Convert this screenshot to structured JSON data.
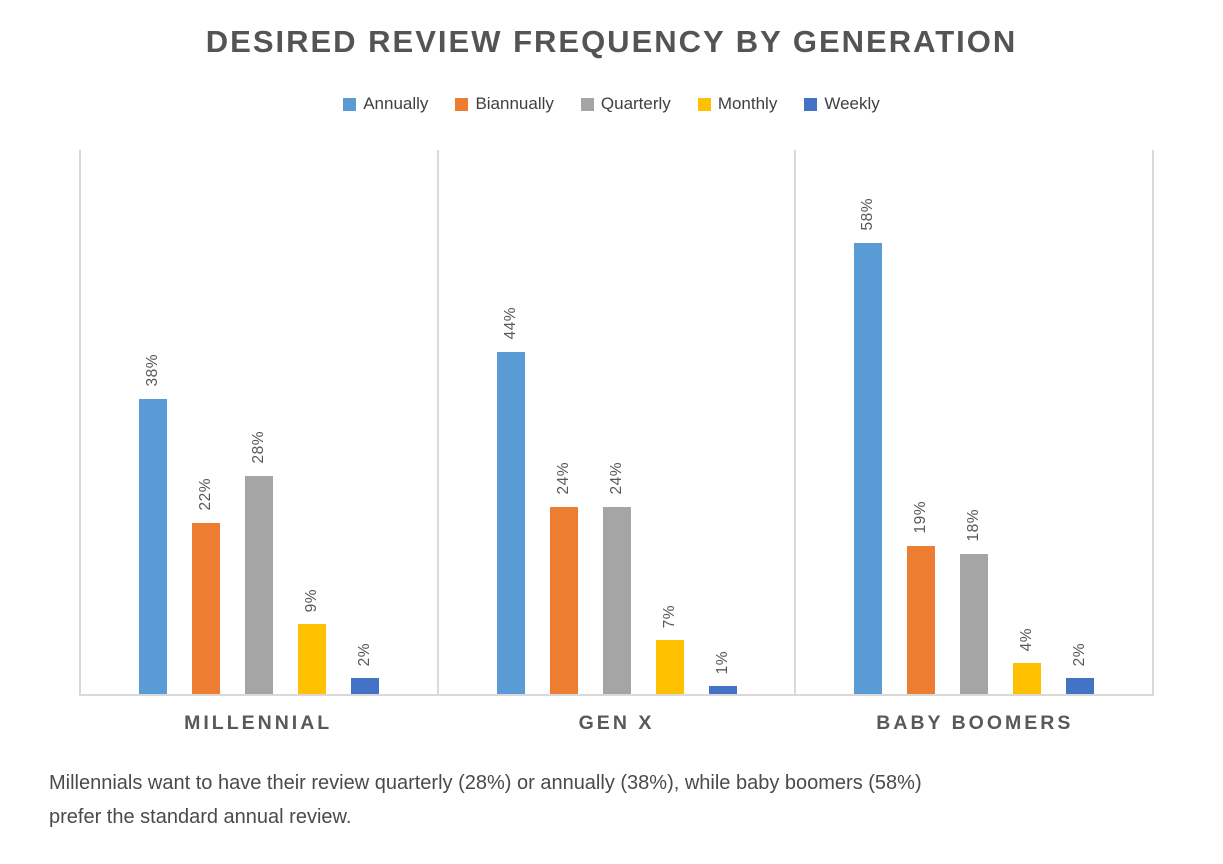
{
  "chart_data": {
    "type": "bar",
    "title": "DESIRED REVIEW FREQUENCY BY GENERATION",
    "categories": [
      "MILLENNIAL",
      "GEN X",
      "BABY BOOMERS"
    ],
    "series": [
      {
        "name": "Annually",
        "color": "#5B9BD5",
        "values": [
          38,
          44,
          58
        ]
      },
      {
        "name": "Biannually",
        "color": "#ED7D31",
        "values": [
          22,
          24,
          19
        ]
      },
      {
        "name": "Quarterly",
        "color": "#A5A5A5",
        "values": [
          28,
          24,
          18
        ]
      },
      {
        "name": "Monthly",
        "color": "#FFC000",
        "values": [
          9,
          7,
          4
        ]
      },
      {
        "name": "Weekly",
        "color": "#4472C4",
        "values": [
          2,
          1,
          2
        ]
      }
    ],
    "value_suffix": "%",
    "data_labels": "rotated 90 degrees, reading bottom-to-top, above each bar",
    "ylim": [
      0,
      70
    ],
    "grid": false,
    "legend_position": "top",
    "axis_line_color": "#D9D9D9",
    "text_color": "#595959"
  },
  "caption": {
    "line1": "Millennials want to have their review quarterly (28%) or annually (38%), while baby boomers (58%)",
    "line2": "prefer the standard annual review."
  }
}
